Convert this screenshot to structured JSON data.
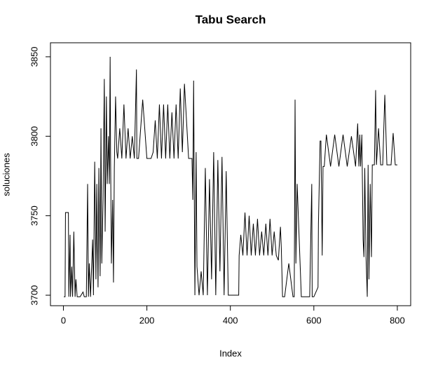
{
  "chart_data": {
    "type": "line",
    "title": "Tabu Search",
    "x_label": "Index",
    "y_label": "soluciones",
    "x": [
      1,
      4,
      5,
      12,
      13,
      16,
      17,
      20,
      22,
      25,
      28,
      30,
      33,
      35,
      40,
      47,
      50,
      52,
      55,
      58,
      60,
      62,
      65,
      70,
      72,
      75,
      78,
      80,
      83,
      85,
      88,
      90,
      92,
      95,
      98,
      100,
      103,
      105,
      108,
      110,
      112,
      113,
      115,
      118,
      120,
      122,
      125,
      128,
      130,
      135,
      140,
      145,
      150,
      155,
      160,
      165,
      170,
      175,
      176,
      180,
      190,
      200,
      210,
      215,
      220,
      225,
      230,
      235,
      240,
      245,
      250,
      255,
      260,
      265,
      270,
      275,
      280,
      285,
      290,
      300,
      305,
      308,
      310,
      312,
      315,
      318,
      320,
      325,
      330,
      335,
      340,
      345,
      350,
      355,
      360,
      365,
      370,
      375,
      380,
      385,
      390,
      395,
      400,
      405,
      410,
      415,
      420,
      421,
      425,
      430,
      435,
      440,
      445,
      450,
      455,
      460,
      465,
      470,
      475,
      480,
      485,
      490,
      495,
      500,
      505,
      510,
      515,
      520,
      522,
      525,
      530,
      540,
      550,
      553,
      555,
      557,
      560,
      570,
      580,
      590,
      595,
      596,
      600,
      610,
      611,
      615,
      617,
      620,
      622,
      625,
      630,
      640,
      650,
      660,
      670,
      680,
      690,
      700,
      705,
      708,
      710,
      712,
      715,
      718,
      720,
      722,
      725,
      728,
      730,
      732,
      735,
      738,
      740,
      742,
      745,
      748,
      750,
      755,
      760,
      765,
      770,
      775,
      778,
      780,
      785,
      790,
      795,
      798,
      800
    ],
    "values": [
      3699,
      3699,
      3752,
      3752,
      3699,
      3738,
      3699,
      3718,
      3699,
      3740,
      3699,
      3710,
      3699,
      3699,
      3699,
      3702,
      3699,
      3699,
      3699,
      3770,
      3699,
      3720,
      3699,
      3735,
      3700,
      3784,
      3710,
      3770,
      3705,
      3780,
      3712,
      3805,
      3720,
      3760,
      3836,
      3740,
      3825,
      3770,
      3800,
      3770,
      3850,
      3790,
      3720,
      3760,
      3708,
      3780,
      3825,
      3790,
      3786,
      3805,
      3786,
      3820,
      3786,
      3805,
      3786,
      3800,
      3786,
      3842,
      3786,
      3786,
      3823,
      3786,
      3786,
      3790,
      3810,
      3786,
      3820,
      3786,
      3820,
      3786,
      3820,
      3786,
      3815,
      3786,
      3820,
      3786,
      3830,
      3790,
      3833,
      3786,
      3786,
      3786,
      3760,
      3835,
      3700,
      3790,
      3718,
      3700,
      3715,
      3700,
      3780,
      3700,
      3773,
      3710,
      3790,
      3700,
      3785,
      3715,
      3787,
      3700,
      3778,
      3700,
      3700,
      3700,
      3700,
      3700,
      3700,
      3725,
      3738,
      3725,
      3752,
      3725,
      3750,
      3725,
      3745,
      3725,
      3748,
      3725,
      3740,
      3725,
      3745,
      3725,
      3748,
      3725,
      3740,
      3725,
      3722,
      3743,
      3730,
      3699,
      3699,
      3720,
      3699,
      3699,
      3823,
      3720,
      3770,
      3699,
      3699,
      3699,
      3770,
      3699,
      3699,
      3705,
      3745,
      3797,
      3797,
      3725,
      3781,
      3781,
      3801,
      3781,
      3801,
      3781,
      3801,
      3781,
      3800,
      3781,
      3808,
      3781,
      3801,
      3781,
      3801,
      3735,
      3724,
      3780,
      3724,
      3699,
      3782,
      3710,
      3770,
      3724,
      3782,
      3782,
      3782,
      3829,
      3782,
      3805,
      3782,
      3782,
      3826,
      3782,
      3782,
      3782,
      3782,
      3802,
      3782,
      3782,
      3782
    ],
    "color": "#000000",
    "xlim": [
      -31,
      832
    ],
    "ylim": [
      3693.4,
      3858.8
    ],
    "xticks": [
      0,
      200,
      400,
      600,
      800
    ],
    "yticks": [
      3700,
      3750,
      3800,
      3850
    ]
  }
}
